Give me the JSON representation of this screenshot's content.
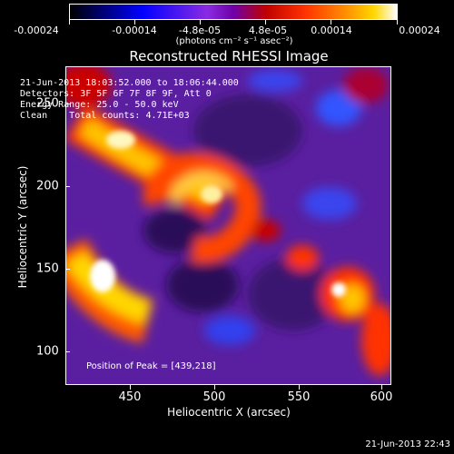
{
  "colorbar": {
    "ticks": [
      "-0.00024",
      "-0.00014",
      "-4.8e-05",
      "4.8e-05",
      "0.00014",
      "0.00024"
    ],
    "units": "(photons cm⁻² s⁻¹ asec⁻²)"
  },
  "plot": {
    "title": "Reconstructed RHESSI Image",
    "info_lines": [
      "21-Jun-2013 18:03:52.000 to 18:06:44.000",
      "Detectors: 3F 5F 6F 7F 8F 9F, Att 0",
      "Energy Range: 25.0 - 50.0 keV",
      "Clean    Total counts: 4.71E+03"
    ],
    "peak_label": "Position of Peak = [439,218]"
  },
  "axes": {
    "xlabel": "Heliocentric X (arcsec)",
    "ylabel": "Heliocentric Y (arcsec)",
    "xticks": [
      "450",
      "500",
      "550",
      "600"
    ],
    "yticks": [
      "250",
      "200",
      "150",
      "100"
    ],
    "xrange": [
      412,
      603
    ],
    "yrange": [
      82,
      277
    ]
  },
  "footer": {
    "timestamp": "21-Jun-2013 22:43"
  },
  "colors": {
    "low": "#0000ff",
    "mid": "#6f00a8",
    "high": "#ffffff"
  }
}
